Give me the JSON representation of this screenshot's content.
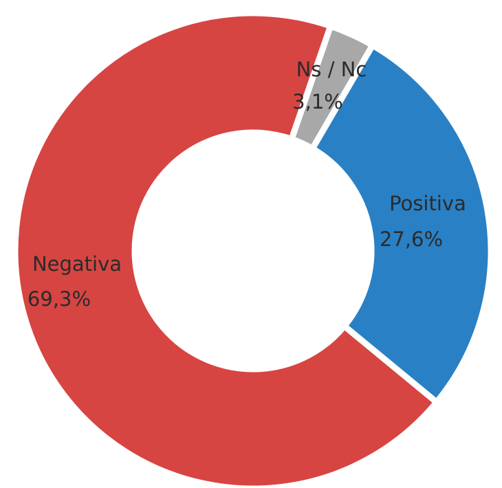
{
  "chart_data": {
    "type": "pie",
    "categories": [
      "Ns / Nc",
      "Positiva",
      "Negativa"
    ],
    "values": [
      3.1,
      27.6,
      69.3
    ],
    "value_labels": [
      "3,1%",
      "27,6%",
      "69,3%"
    ],
    "colors": [
      "#a8a8a8",
      "#2a80c4",
      "#d64542"
    ]
  }
}
